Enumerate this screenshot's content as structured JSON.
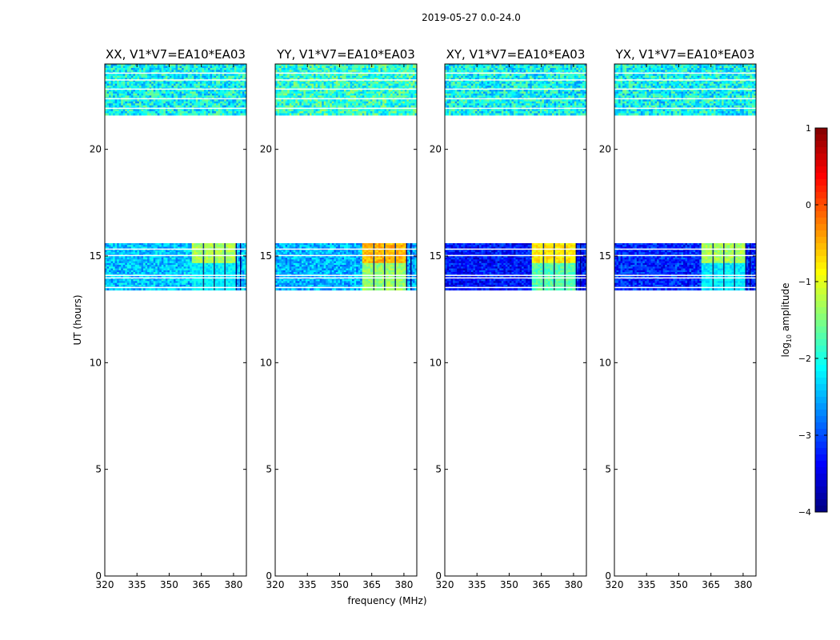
{
  "suptitle": "2019-05-27 0.0-24.0",
  "chart_data": {
    "type": "heatmap",
    "xlabel": "frequency (MHz)",
    "ylabel": "UT (hours)",
    "xlim": [
      320,
      386
    ],
    "ylim": [
      0,
      24
    ],
    "xticks": [
      320,
      335,
      350,
      365,
      380
    ],
    "yticks": [
      0,
      5,
      10,
      15,
      20
    ],
    "colorbar": {
      "label": "log10 amplitude",
      "range": [
        -4,
        1
      ],
      "ticks": [
        "1",
        "0",
        "−1",
        "−2",
        "−3",
        "−4"
      ],
      "tick_values": [
        1,
        0,
        -1,
        -2,
        -3,
        -4
      ],
      "colormap": "jet"
    },
    "data_blocks": [
      {
        "ut_range": [
          21.6,
          24.0
        ],
        "description": "broadband noise"
      },
      {
        "ut_range": [
          13.4,
          15.6
        ],
        "description": "noise with strong RFI 361-380 MHz"
      }
    ],
    "rfi_band": [
      361,
      381
    ],
    "panels": [
      {
        "title": "XX, V1*V7=EA10*EA03",
        "base_level": -2.4,
        "rfi_level": -1.3,
        "top_level": -2.1
      },
      {
        "title": "YY, V1*V7=EA10*EA03",
        "base_level": -2.5,
        "rfi_level": -0.5,
        "top_level": -1.9
      },
      {
        "title": "XY, V1*V7=EA10*EA03",
        "base_level": -3.3,
        "rfi_level": -0.8,
        "top_level": -2.1
      },
      {
        "title": "YX, V1*V7=EA10*EA03",
        "base_level": -3.2,
        "rfi_level": -1.3,
        "top_level": -2.1
      }
    ]
  }
}
